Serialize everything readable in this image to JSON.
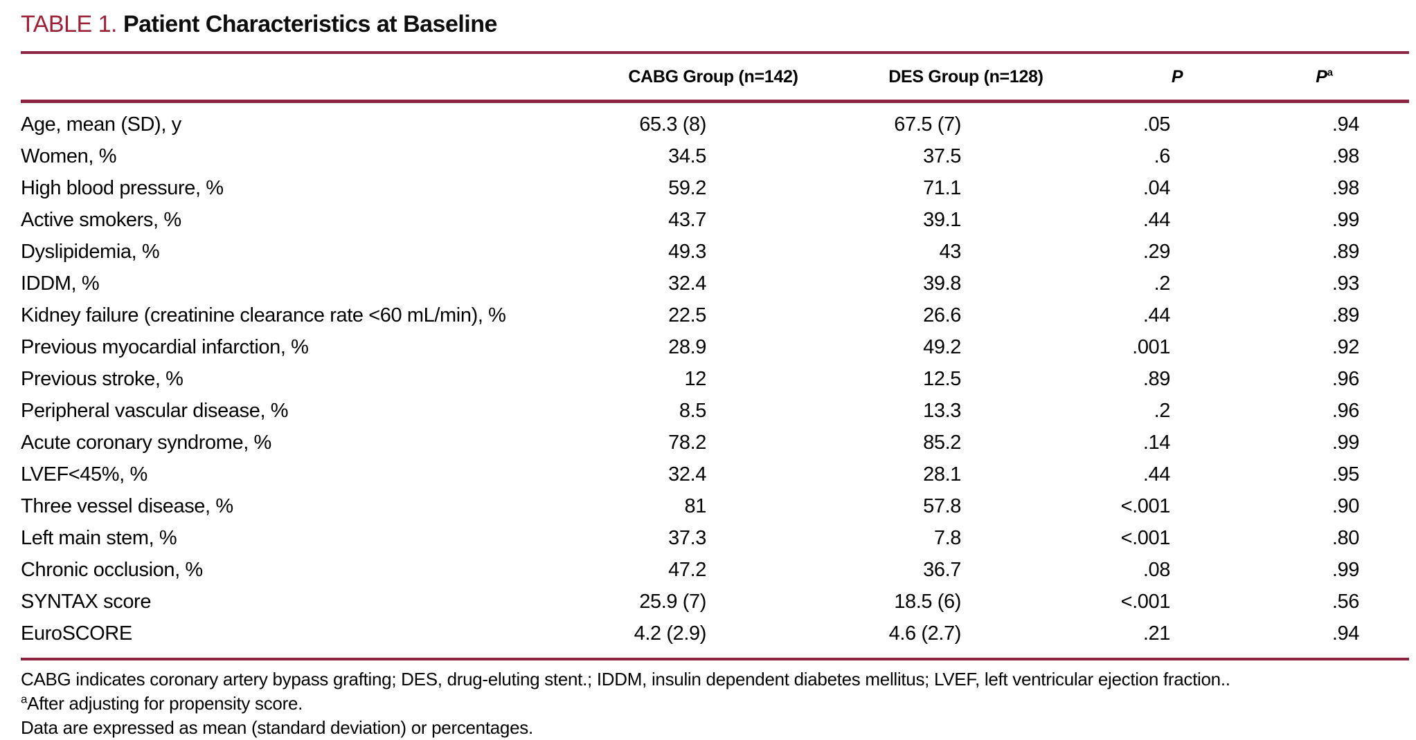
{
  "colors": {
    "accent": "#9c2137",
    "rule": "#8d2440"
  },
  "title": {
    "tag": "TABLE 1.",
    "text": "Patient Characteristics at Baseline"
  },
  "table": {
    "columns": [
      "",
      "CABG Group (n=142)",
      "DES Group (n=128)",
      "P",
      "P"
    ],
    "pa_superscript": "a",
    "rows": [
      {
        "label": "Age, mean (SD), y",
        "cabg": "65.3 (8)",
        "des": "67.5 (7)",
        "p": ".05",
        "pa": ".94"
      },
      {
        "label": "Women, %",
        "cabg": "34.5",
        "des": "37.5",
        "p": ".6",
        "pa": ".98"
      },
      {
        "label": "High blood pressure, %",
        "cabg": "59.2",
        "des": "71.1",
        "p": ".04",
        "pa": ".98"
      },
      {
        "label": "Active smokers, %",
        "cabg": "43.7",
        "des": "39.1",
        "p": ".44",
        "pa": ".99"
      },
      {
        "label": "Dyslipidemia, %",
        "cabg": "49.3",
        "des": "43",
        "p": ".29",
        "pa": ".89"
      },
      {
        "label": "IDDM, %",
        "cabg": "32.4",
        "des": "39.8",
        "p": ".2",
        "pa": ".93"
      },
      {
        "label": "Kidney failure (creatinine clearance rate <60 mL/min), %",
        "cabg": "22.5",
        "des": "26.6",
        "p": ".44",
        "pa": ".89"
      },
      {
        "label": "Previous myocardial infarction, %",
        "cabg": "28.9",
        "des": "49.2",
        "p": ".001",
        "pa": ".92"
      },
      {
        "label": "Previous stroke, %",
        "cabg": "12",
        "des": "12.5",
        "p": ".89",
        "pa": ".96"
      },
      {
        "label": "Peripheral vascular disease, %",
        "cabg": "8.5",
        "des": "13.3",
        "p": ".2",
        "pa": ".96"
      },
      {
        "label": "Acute coronary syndrome, %",
        "cabg": "78.2",
        "des": "85.2",
        "p": ".14",
        "pa": ".99"
      },
      {
        "label": "LVEF<45%, %",
        "cabg": "32.4",
        "des": "28.1",
        "p": ".44",
        "pa": ".95"
      },
      {
        "label": "Three vessel disease, %",
        "cabg": "81",
        "des": "57.8",
        "p": "<.001",
        "pa": ".90"
      },
      {
        "label": "Left main stem, %",
        "cabg": "37.3",
        "des": "7.8",
        "p": "<.001",
        "pa": ".80"
      },
      {
        "label": "Chronic occlusion, %",
        "cabg": "47.2",
        "des": "36.7",
        "p": ".08",
        "pa": ".99"
      },
      {
        "label": "SYNTAX score",
        "cabg": "25.9 (7)",
        "des": "18.5 (6)",
        "p": "<.001",
        "pa": ".56"
      },
      {
        "label": "EuroSCORE",
        "cabg": "4.2 (2.9)",
        "des": "4.6 (2.7)",
        "p": ".21",
        "pa": ".94"
      }
    ]
  },
  "footnotes": [
    {
      "sup": "",
      "text": "CABG indicates coronary artery bypass grafting; DES, drug-eluting stent.; IDDM, insulin dependent diabetes mellitus; LVEF, left ventricular ejection fraction.."
    },
    {
      "sup": "a",
      "text": "After adjusting for propensity score."
    },
    {
      "sup": "",
      "text": "Data are expressed as mean (standard deviation) or percentages."
    }
  ]
}
